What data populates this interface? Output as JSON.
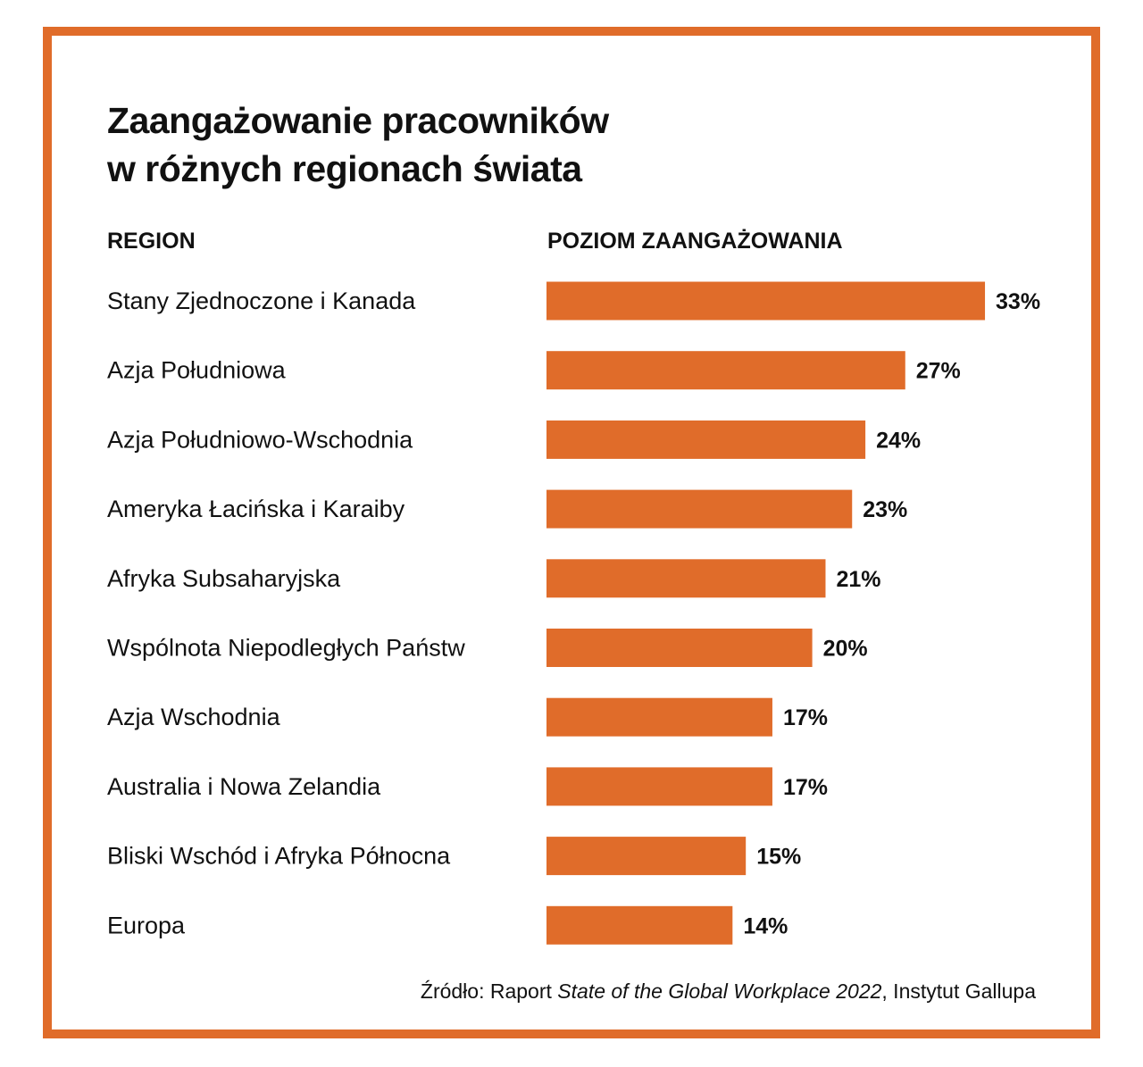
{
  "chart_data": {
    "type": "bar",
    "orientation": "horizontal",
    "title": "Zaangażowanie pracowników w różnych regionach świata",
    "title_lines": [
      "Zaangażowanie pracowników",
      "w różnych regionach świata"
    ],
    "category_header": "REGION",
    "value_header": "POZIOM ZAANGAŻOWANIA",
    "categories": [
      "Stany Zjednoczone i Kanada",
      "Azja Południowa",
      "Azja Południowo-Wschodnia",
      "Ameryka Łacińska i Karaiby",
      "Afryka Subsaharyjska",
      "Wspólnota Niepodległych Państw",
      "Azja Wschodnia",
      "Australia i Nowa Zelandia",
      "Bliski Wschód i Afryka Północna",
      "Europa"
    ],
    "values": [
      33,
      27,
      24,
      23,
      21,
      20,
      17,
      17,
      15,
      14
    ],
    "value_labels": [
      "33%",
      "27%",
      "24%",
      "23%",
      "21%",
      "20%",
      "17%",
      "17%",
      "15%",
      "14%"
    ],
    "unit": "%",
    "grid": false,
    "bar_color": "#E06C2A",
    "frame_color": "#E06C2A",
    "source": {
      "prefix": "Źródło: Raport ",
      "italic": "State of the Global Workplace 2022",
      "suffix": ", Instytut Gallupa"
    }
  }
}
